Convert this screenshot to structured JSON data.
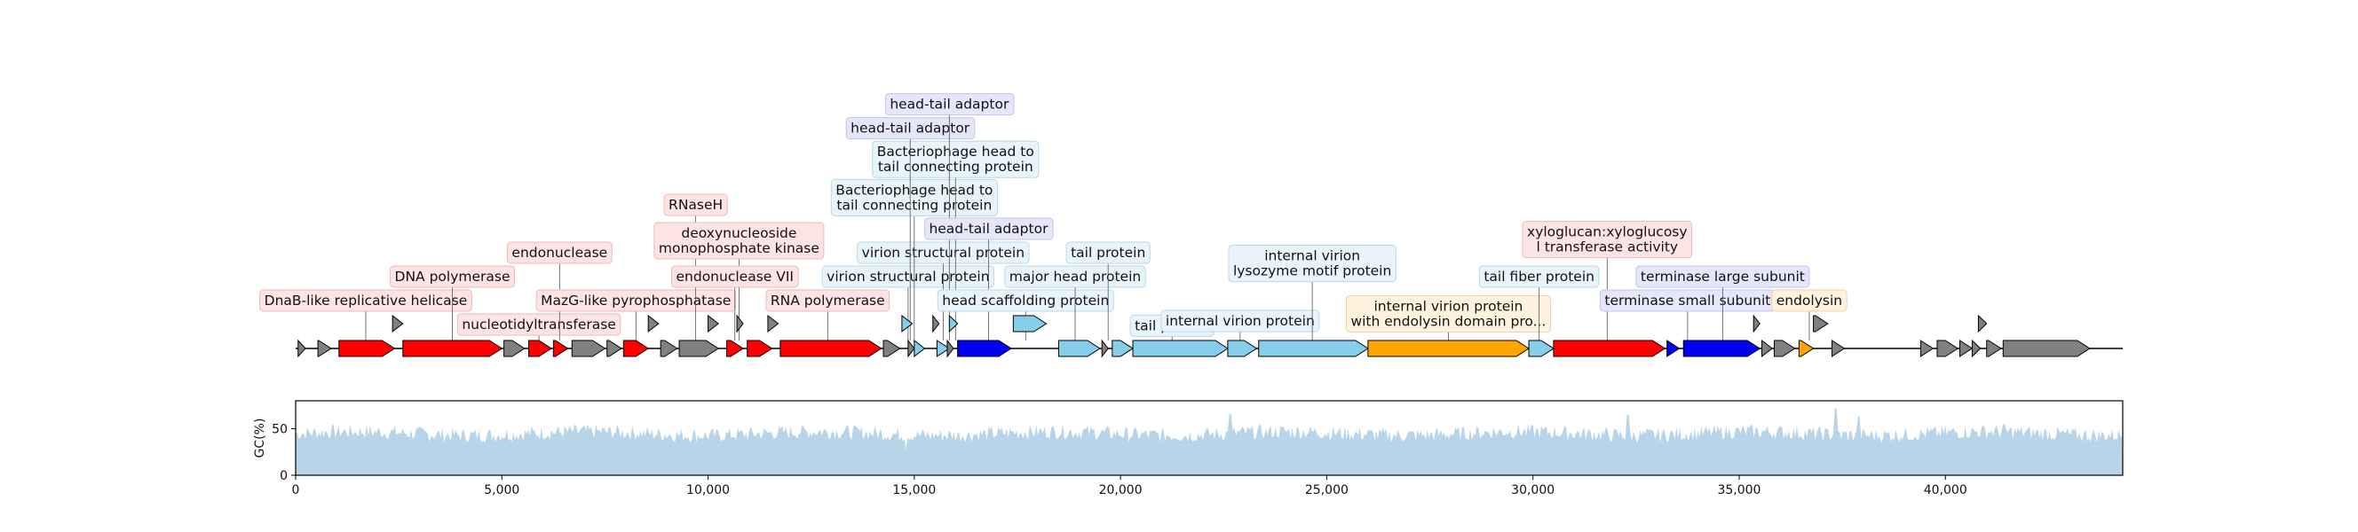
{
  "genome": {
    "length_bp": 44300,
    "x_min": 0,
    "x_max": 44300
  },
  "feature_colors": {
    "red": "#ff0000",
    "gray": "#808080",
    "blue": "#0000ee",
    "skyblue": "#87ceeb",
    "orange": "#ffa500"
  },
  "label_box_colors": {
    "pink": {
      "fill": "#fde4e4",
      "stroke": "#f0b8b8"
    },
    "lavender": {
      "fill": "#e6e6fa",
      "stroke": "#c4c4ea"
    },
    "lightblue": {
      "fill": "#e8f4fa",
      "stroke": "#b8d8e8"
    },
    "cream": {
      "fill": "#fff3e0",
      "stroke": "#f0d0a0"
    }
  },
  "features": [
    {
      "start": 60,
      "end": 240,
      "strand": 1,
      "level": 0,
      "color": "gray"
    },
    {
      "start": 540,
      "end": 860,
      "strand": 1,
      "level": 0,
      "color": "gray"
    },
    {
      "start": 1050,
      "end": 2400,
      "strand": 1,
      "level": 0,
      "color": "red"
    },
    {
      "start": 2350,
      "end": 2600,
      "strand": 1,
      "level": 1,
      "color": "gray"
    },
    {
      "start": 2600,
      "end": 5000,
      "strand": 1,
      "level": 0,
      "color": "red"
    },
    {
      "start": 5050,
      "end": 5550,
      "strand": 1,
      "level": 0,
      "color": "gray"
    },
    {
      "start": 5650,
      "end": 6200,
      "strand": 1,
      "level": 0,
      "color": "red"
    },
    {
      "start": 6250,
      "end": 6600,
      "strand": 1,
      "level": 0,
      "color": "red"
    },
    {
      "start": 6700,
      "end": 7500,
      "strand": 1,
      "level": 0,
      "color": "gray"
    },
    {
      "start": 7550,
      "end": 7900,
      "strand": 1,
      "level": 0,
      "color": "gray"
    },
    {
      "start": 7950,
      "end": 8550,
      "strand": 1,
      "level": 0,
      "color": "red"
    },
    {
      "start": 8550,
      "end": 8800,
      "strand": 1,
      "level": 1,
      "color": "gray"
    },
    {
      "start": 8850,
      "end": 9250,
      "strand": 1,
      "level": 0,
      "color": "gray"
    },
    {
      "start": 9300,
      "end": 10250,
      "strand": 1,
      "level": 0,
      "color": "gray"
    },
    {
      "start": 10000,
      "end": 10250,
      "strand": 1,
      "level": 1,
      "color": "gray"
    },
    {
      "start": 10450,
      "end": 10850,
      "strand": 1,
      "level": 0,
      "color": "red"
    },
    {
      "start": 10700,
      "end": 10850,
      "strand": 1,
      "level": 1,
      "color": "gray"
    },
    {
      "start": 10950,
      "end": 11550,
      "strand": 1,
      "level": 0,
      "color": "red"
    },
    {
      "start": 11450,
      "end": 11700,
      "strand": 1,
      "level": 1,
      "color": "gray"
    },
    {
      "start": 11750,
      "end": 14200,
      "strand": 1,
      "level": 0,
      "color": "red"
    },
    {
      "start": 14250,
      "end": 14650,
      "strand": 1,
      "level": 0,
      "color": "gray"
    },
    {
      "start": 14700,
      "end": 14950,
      "strand": 1,
      "level": 1,
      "color": "skyblue"
    },
    {
      "start": 14850,
      "end": 15000,
      "strand": 1,
      "level": 0,
      "color": "gray"
    },
    {
      "start": 15000,
      "end": 15250,
      "strand": 1,
      "level": 0,
      "color": "skyblue"
    },
    {
      "start": 15450,
      "end": 15600,
      "strand": 1,
      "level": 1,
      "color": "gray"
    },
    {
      "start": 15550,
      "end": 15850,
      "strand": 1,
      "level": 0,
      "color": "skyblue"
    },
    {
      "start": 15800,
      "end": 15950,
      "strand": 1,
      "level": 0,
      "color": "gray"
    },
    {
      "start": 15850,
      "end": 16050,
      "strand": 1,
      "level": 1,
      "color": "skyblue"
    },
    {
      "start": 16050,
      "end": 17350,
      "strand": 1,
      "level": 0,
      "color": "blue"
    },
    {
      "start": 17400,
      "end": 18200,
      "strand": 1,
      "level": 1,
      "color": "skyblue"
    },
    {
      "start": 18500,
      "end": 19500,
      "strand": 1,
      "level": 0,
      "color": "skyblue"
    },
    {
      "start": 19550,
      "end": 19700,
      "strand": 1,
      "level": 0,
      "color": "gray"
    },
    {
      "start": 19800,
      "end": 20300,
      "strand": 1,
      "level": 0,
      "color": "skyblue"
    },
    {
      "start": 20300,
      "end": 22600,
      "strand": 1,
      "level": 0,
      "color": "skyblue"
    },
    {
      "start": 22600,
      "end": 23300,
      "strand": 1,
      "level": 0,
      "color": "skyblue"
    },
    {
      "start": 23350,
      "end": 26000,
      "strand": 1,
      "level": 0,
      "color": "skyblue"
    },
    {
      "start": 26000,
      "end": 29900,
      "strand": 1,
      "level": 0,
      "color": "orange"
    },
    {
      "start": 29900,
      "end": 30500,
      "strand": 1,
      "level": 0,
      "color": "skyblue"
    },
    {
      "start": 30500,
      "end": 33200,
      "strand": 1,
      "level": 0,
      "color": "red"
    },
    {
      "start": 33250,
      "end": 33550,
      "strand": 1,
      "level": 0,
      "color": "blue"
    },
    {
      "start": 33650,
      "end": 35500,
      "strand": 1,
      "level": 0,
      "color": "blue"
    },
    {
      "start": 35350,
      "end": 35500,
      "strand": 1,
      "level": 1,
      "color": "gray"
    },
    {
      "start": 35550,
      "end": 35800,
      "strand": 1,
      "level": 0,
      "color": "gray"
    },
    {
      "start": 35850,
      "end": 36350,
      "strand": 1,
      "level": 0,
      "color": "gray"
    },
    {
      "start": 36450,
      "end": 36800,
      "strand": 1,
      "level": 0,
      "color": "orange"
    },
    {
      "start": 36800,
      "end": 37150,
      "strand": 1,
      "level": 1,
      "color": "gray"
    },
    {
      "start": 37250,
      "end": 37550,
      "strand": 1,
      "level": 0,
      "color": "gray"
    },
    {
      "start": 39400,
      "end": 39700,
      "strand": 1,
      "level": 0,
      "color": "gray"
    },
    {
      "start": 39800,
      "end": 40300,
      "strand": 1,
      "level": 0,
      "color": "gray"
    },
    {
      "start": 40350,
      "end": 40650,
      "strand": 1,
      "level": 0,
      "color": "gray"
    },
    {
      "start": 40650,
      "end": 40850,
      "strand": 1,
      "level": 0,
      "color": "gray"
    },
    {
      "start": 40800,
      "end": 41000,
      "strand": 1,
      "level": 1,
      "color": "gray"
    },
    {
      "start": 41000,
      "end": 41350,
      "strand": 1,
      "level": 0,
      "color": "gray"
    },
    {
      "start": 41400,
      "end": 43500,
      "strand": 1,
      "level": 0,
      "color": "gray"
    }
  ],
  "annotations": [
    {
      "text": "DnaB-like replicative helicase",
      "x": 1700,
      "box": "pink",
      "level": 0
    },
    {
      "text": "DNA polymerase",
      "x": 3800,
      "box": "pink",
      "level": 1
    },
    {
      "text": "nucleotidyltransferase",
      "x": 5900,
      "box": "pink",
      "level": -1
    },
    {
      "text": "endonuclease",
      "x": 6400,
      "box": "pink",
      "level": 2
    },
    {
      "text": "MazG-like pyrophosphatase",
      "x": 8250,
      "box": "pink",
      "level": 0
    },
    {
      "text": "RNaseH",
      "x": 9700,
      "box": "pink",
      "level": 4
    },
    {
      "text": "deoxynucleoside\nmonophosphate kinase",
      "x": 10750,
      "box": "pink",
      "level": 2.5
    },
    {
      "text": "endonuclease VII",
      "x": 10650,
      "box": "pink",
      "level": 1
    },
    {
      "text": "RNA polymerase",
      "x": 12900,
      "box": "pink",
      "level": 0
    },
    {
      "text": "virion structural protein",
      "x": 14850,
      "box": "lightblue",
      "level": 1
    },
    {
      "text": "virion structural protein",
      "x": 15700,
      "box": "lightblue",
      "level": 2
    },
    {
      "text": "Bacteriophage head to\ntail connecting protein",
      "x": 15000,
      "box": "lightblue",
      "level": 4.3
    },
    {
      "text": "Bacteriophage head to\ntail connecting protein",
      "x": 16000,
      "box": "lightblue",
      "level": 5.9
    },
    {
      "text": "head-tail adaptor",
      "x": 14900,
      "box": "lavender",
      "level": 7.2
    },
    {
      "text": "head-tail adaptor",
      "x": 15850,
      "box": "lavender",
      "level": 8.2
    },
    {
      "text": "head-tail adaptor",
      "x": 16800,
      "box": "lavender",
      "level": 3
    },
    {
      "text": "head scaffolding protein",
      "x": 17700,
      "box": "lightblue",
      "level": 0
    },
    {
      "text": "major head protein",
      "x": 18900,
      "box": "lightblue",
      "level": 1
    },
    {
      "text": "tail protein",
      "x": 19700,
      "box": "lightblue",
      "level": 2
    },
    {
      "text": "tail protein",
      "x": 21250,
      "box": "lightblue",
      "level": -1.05
    },
    {
      "text": "internal virion protein",
      "x": 22900,
      "box": "lightblue",
      "level": -0.85
    },
    {
      "text": "internal virion\nlysozyme motif protein",
      "x": 24650,
      "box": "lightblue",
      "level": 1.55
    },
    {
      "text": "internal virion protein\nwith endolysin domain pro...",
      "x": 27950,
      "box": "cream",
      "level": -0.55
    },
    {
      "text": "tail fiber protein",
      "x": 30150,
      "box": "lightblue",
      "level": 1
    },
    {
      "text": "xyloglucan:xyloglucosy\nl transferase activity",
      "x": 31800,
      "box": "pink",
      "level": 2.55
    },
    {
      "text": "terminase small subunit",
      "x": 33750,
      "box": "lavender",
      "level": 0
    },
    {
      "text": "terminase large subunit",
      "x": 34600,
      "box": "lavender",
      "level": 1
    },
    {
      "text": "endolysin",
      "x": 36700,
      "box": "cream",
      "level": 0
    }
  ],
  "gc_plot": {
    "ylabel": "GC(%)",
    "y_min": 0,
    "y_max": 80,
    "y_ticks": [
      "0",
      "50"
    ],
    "x_ticks": [
      "0",
      "5,000",
      "10,000",
      "15,000",
      "20,000",
      "25,000",
      "30,000",
      "35,000",
      "40,000"
    ],
    "fill_color": "#b8d4e8",
    "mean": 45,
    "amplitude": 8,
    "peaks": [
      {
        "x": 22650,
        "value": 66
      },
      {
        "x": 32300,
        "value": 65
      },
      {
        "x": 37350,
        "value": 72
      },
      {
        "x": 37900,
        "value": 63
      },
      {
        "x": 14800,
        "value": 28
      },
      {
        "x": 41400,
        "value": 55
      }
    ]
  }
}
